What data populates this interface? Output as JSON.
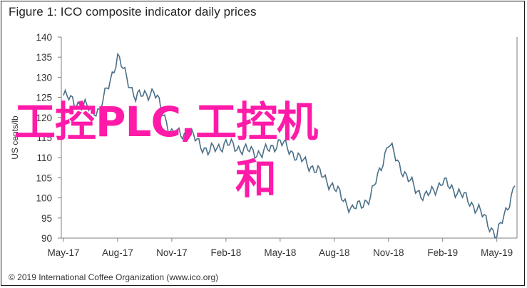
{
  "title": "Figure 1: ICO composite indicator daily prices",
  "footer": "© 2019 International Coffee Organization (www.ico.org)",
  "overlay": {
    "line1": "工控PLC,工控机",
    "line2": "和"
  },
  "colors": {
    "series": "#4a6f87",
    "axis": "#7f7f7f",
    "overlay": "#ff1aa8"
  },
  "chart_data": {
    "type": "line",
    "ylabel": "US cents/lb",
    "ylim": [
      90,
      140
    ],
    "yticks": [
      90,
      95,
      100,
      105,
      110,
      115,
      120,
      125,
      130,
      135,
      140
    ],
    "xtick_labels": [
      "May-17",
      "Aug-17",
      "Nov-17",
      "Feb-18",
      "May-18",
      "Aug-18",
      "Nov-18",
      "Feb-19",
      "May-19"
    ],
    "grid": false,
    "series": [
      {
        "x": [
          "May-17",
          "Jun-17",
          "Jul-17",
          "Aug-17",
          "Sep-17",
          "Oct-17",
          "Nov-17",
          "Dec-17",
          "Jan-18",
          "Feb-18",
          "Mar-18",
          "Apr-18",
          "May-18",
          "Jun-18",
          "Jul-18",
          "Aug-18",
          "Sep-18",
          "Oct-18",
          "Nov-18",
          "Dec-18",
          "Jan-19",
          "Feb-19",
          "Mar-19",
          "Apr-19",
          "May-19",
          "Jun-19"
        ],
        "values": [
          125.5,
          123,
          121.5,
          135,
          125,
          126.5,
          116,
          116,
          111.5,
          113.5,
          112,
          111,
          114,
          110,
          107,
          102.5,
          97,
          100,
          113.5,
          105,
          100,
          104,
          101,
          97,
          90.5,
          103
        ]
      }
    ]
  }
}
